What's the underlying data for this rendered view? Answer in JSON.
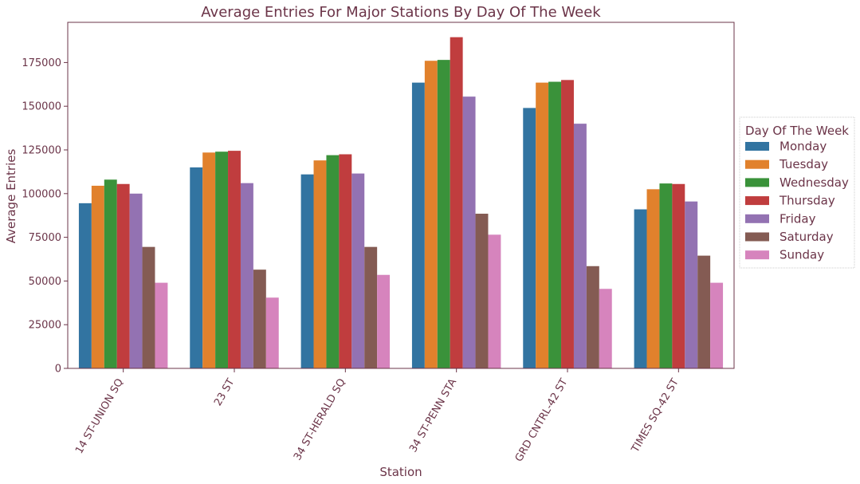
{
  "chart_data": {
    "type": "bar",
    "title": "Average Entries For Major Stations By Day Of The Week",
    "xlabel": "Station",
    "ylabel": "Average Entries",
    "ylim": [
      0,
      198000
    ],
    "yticks": [
      0,
      25000,
      50000,
      75000,
      100000,
      125000,
      150000,
      175000
    ],
    "grid": false,
    "legend": {
      "title": "Day Of The Week",
      "placement": "right"
    },
    "categories": [
      "14 ST-UNION SQ",
      "23 ST",
      "34 ST-HERALD SQ",
      "34 ST-PENN STA",
      "GRD CNTRL-42 ST",
      "TIMES SQ-42 ST"
    ],
    "series": [
      {
        "name": "Monday",
        "color": "#3274a1",
        "values": [
          94500,
          115000,
          111000,
          163500,
          149000,
          91000
        ]
      },
      {
        "name": "Tuesday",
        "color": "#e1812c",
        "values": [
          104500,
          123500,
          119000,
          176000,
          163500,
          102500
        ]
      },
      {
        "name": "Wednesday",
        "color": "#3a923a",
        "values": [
          108000,
          124000,
          122000,
          176500,
          164000,
          105800
        ]
      },
      {
        "name": "Thursday",
        "color": "#c03d3e",
        "values": [
          105500,
          124500,
          122500,
          189500,
          165000,
          105500
        ]
      },
      {
        "name": "Friday",
        "color": "#9372b2",
        "values": [
          100000,
          106000,
          111500,
          155500,
          140000,
          95500
        ]
      },
      {
        "name": "Saturday",
        "color": "#845b53",
        "values": [
          69500,
          56500,
          69500,
          88500,
          58500,
          64500
        ]
      },
      {
        "name": "Sunday",
        "color": "#d684bd",
        "values": [
          49000,
          40500,
          53500,
          76500,
          45500,
          49000
        ]
      }
    ]
  }
}
